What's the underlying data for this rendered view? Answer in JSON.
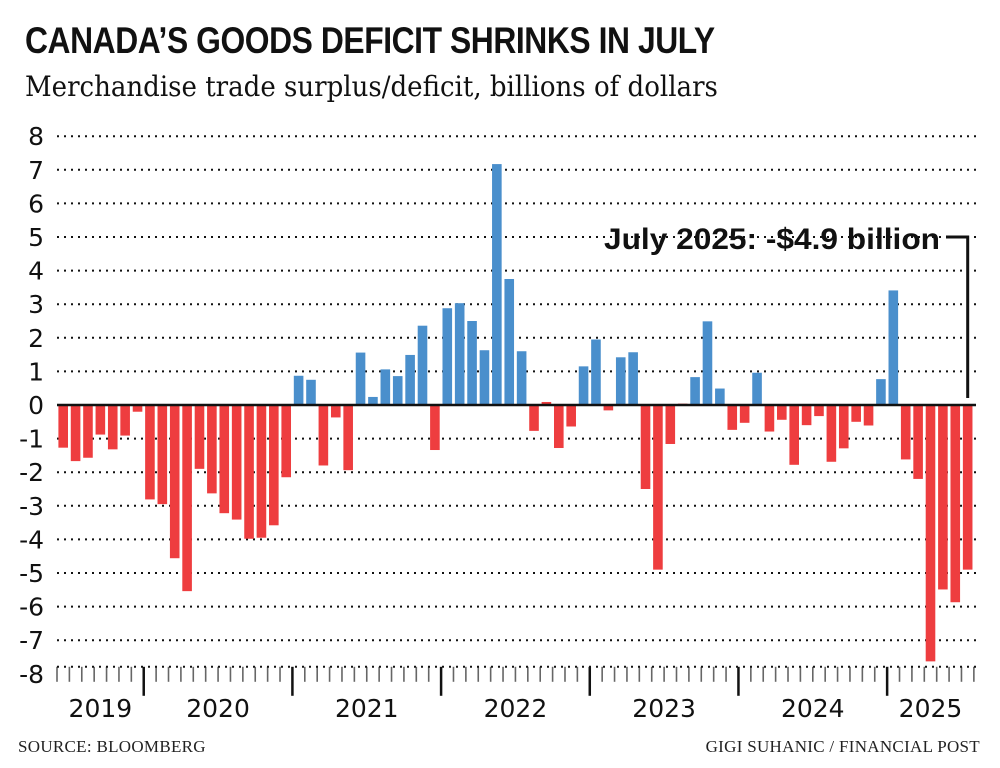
{
  "chart_data": {
    "type": "bar",
    "title": "CANADA’S GOODS DEFICIT SHRINKS IN JULY",
    "subtitle": "Merchandise trade surplus/deficit, billions of dollars",
    "xlabel": "",
    "ylabel": "",
    "ylim": [
      -8,
      8
    ],
    "yticks": [
      8,
      7,
      6,
      5,
      4,
      3,
      2,
      1,
      0,
      -1,
      -2,
      -3,
      -4,
      -5,
      -6,
      -7,
      -8
    ],
    "grid": true,
    "start_month": "2019-06",
    "x_year_labels": [
      "2019",
      "2020",
      "2021",
      "2022",
      "2023",
      "2024",
      "2025"
    ],
    "year_month_counts": [
      7,
      12,
      12,
      12,
      12,
      12,
      7
    ],
    "categories": [
      "2019-06",
      "2019-07",
      "2019-08",
      "2019-09",
      "2019-10",
      "2019-11",
      "2019-12",
      "2020-01",
      "2020-02",
      "2020-03",
      "2020-04",
      "2020-05",
      "2020-06",
      "2020-07",
      "2020-08",
      "2020-09",
      "2020-10",
      "2020-11",
      "2020-12",
      "2021-01",
      "2021-02",
      "2021-03",
      "2021-04",
      "2021-05",
      "2021-06",
      "2021-07",
      "2021-08",
      "2021-09",
      "2021-10",
      "2021-11",
      "2021-12",
      "2022-01",
      "2022-02",
      "2022-03",
      "2022-04",
      "2022-05",
      "2022-06",
      "2022-07",
      "2022-08",
      "2022-09",
      "2022-10",
      "2022-11",
      "2022-12",
      "2023-01",
      "2023-02",
      "2023-03",
      "2023-04",
      "2023-05",
      "2023-06",
      "2023-07",
      "2023-08",
      "2023-09",
      "2023-10",
      "2023-11",
      "2023-12",
      "2024-01",
      "2024-02",
      "2024-03",
      "2024-04",
      "2024-05",
      "2024-06",
      "2024-07",
      "2024-08",
      "2024-09",
      "2024-10",
      "2024-11",
      "2024-12",
      "2025-01",
      "2025-02",
      "2025-03",
      "2025-04",
      "2025-05",
      "2025-06",
      "2025-07"
    ],
    "values": [
      -1.27,
      -1.67,
      -1.57,
      -0.88,
      -1.32,
      -0.91,
      -0.2,
      -2.81,
      -2.95,
      -4.56,
      -5.54,
      -1.9,
      -2.63,
      -3.22,
      -3.41,
      -3.98,
      -3.95,
      -3.58,
      -2.15,
      0.87,
      0.75,
      -1.8,
      -0.37,
      -1.94,
      1.56,
      0.24,
      1.06,
      0.86,
      1.49,
      2.36,
      -1.34,
      2.88,
      3.03,
      2.5,
      1.63,
      7.17,
      3.75,
      1.6,
      -0.77,
      0.09,
      -1.28,
      -0.64,
      1.15,
      1.95,
      -0.16,
      1.42,
      1.57,
      -2.5,
      -4.9,
      -1.16,
      0.04,
      0.83,
      2.49,
      0.49,
      -0.74,
      -0.53,
      0.96,
      -0.79,
      -0.44,
      -1.78,
      -0.6,
      -0.33,
      -1.69,
      -1.29,
      -0.5,
      -0.61,
      0.77,
      3.41,
      -1.62,
      -2.2,
      -7.63,
      -5.49,
      -5.87,
      -4.9
    ],
    "colors": {
      "surplus": "#4a8fcc",
      "deficit": "#ee3d3f"
    },
    "red_override_indices": [
      39,
      50
    ],
    "annotation": {
      "text": "July 2025: -$4.9 billion",
      "target": "2025-07",
      "value": -4.9
    },
    "source": "SOURCE: BLOOMBERG",
    "credit": "GIGI SUHANIC / FINANCIAL POST"
  }
}
